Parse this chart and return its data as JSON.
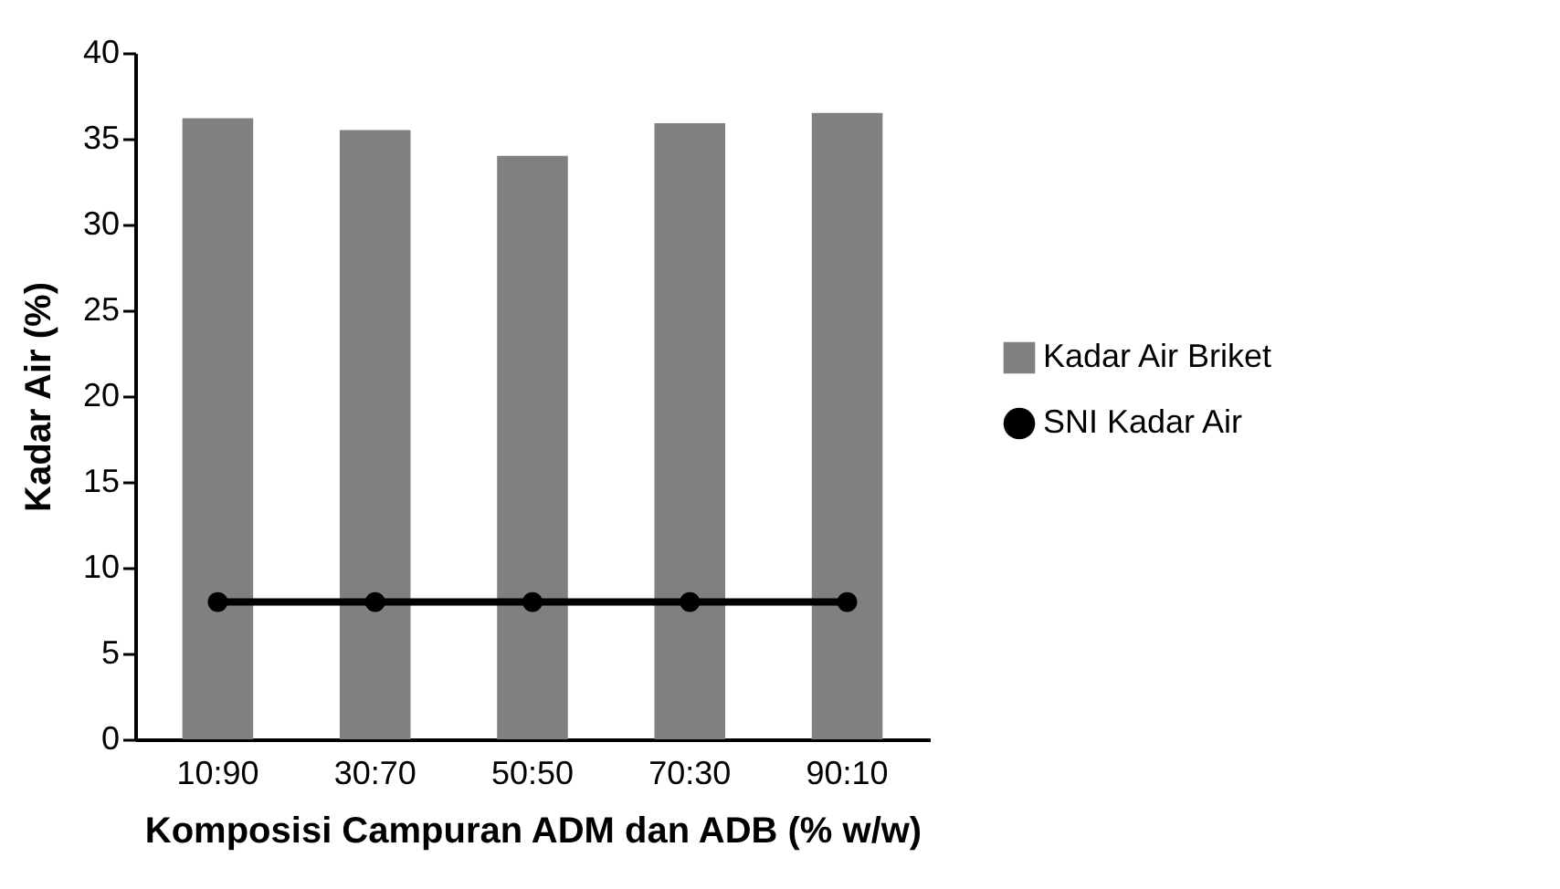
{
  "chart_data": {
    "type": "bar",
    "xlabel": "Komposisi Campuran ADM dan ADB (% w/w)",
    "ylabel": "Kadar Air (%)",
    "categories": [
      "10:90",
      "30:70",
      "50:50",
      "70:30",
      "90:10"
    ],
    "series": [
      {
        "name": "Kadar Air Briket",
        "color": "#808080",
        "values": [
          36.2,
          35.5,
          34.0,
          35.9,
          36.5
        ]
      },
      {
        "name": "SNI Kadar Air",
        "color": "#000000",
        "type": "line",
        "marker": "circle",
        "values": [
          8,
          8,
          8,
          8,
          8
        ]
      }
    ],
    "ylim": [
      0,
      40
    ],
    "yticks": [
      0,
      5,
      10,
      15,
      20,
      25,
      30,
      35,
      40
    ],
    "grid": false,
    "legend": "right"
  }
}
